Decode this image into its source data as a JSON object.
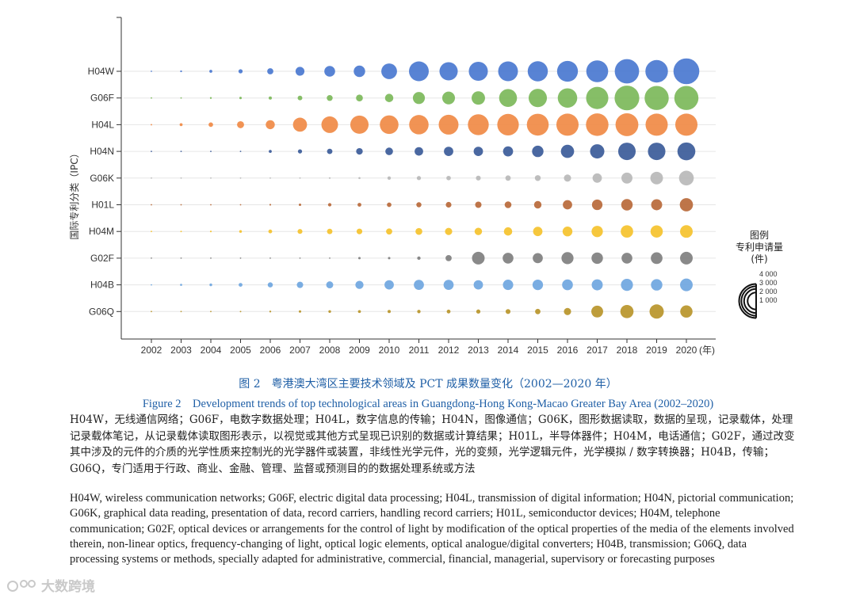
{
  "chart_data": {
    "type": "bubble",
    "title": "图 2　粤港澳大湾区主要技术领域及 PCT 成果数量变化（2002—2020 年）",
    "ylabel": "国际专利分类（IPC）",
    "x_unit_label": "(年)",
    "years": [
      "2002",
      "2003",
      "2004",
      "2005",
      "2006",
      "2007",
      "2008",
      "2009",
      "2010",
      "2011",
      "2012",
      "2013",
      "2014",
      "2015",
      "2016",
      "2017",
      "2018",
      "2019",
      "2020"
    ],
    "legend": {
      "title": "图例",
      "subtitle": "专利申请量",
      "unit": "(件)",
      "values": [
        4000,
        3000,
        2000,
        1000
      ],
      "labels": [
        "4 000",
        "3 000",
        "2 000",
        "1 000"
      ]
    },
    "series": [
      {
        "name": "H04W",
        "color": "#4a78d0",
        "values": [
          2,
          12,
          30,
          60,
          130,
          270,
          400,
          450,
          850,
          1350,
          1150,
          1250,
          1350,
          1400,
          1500,
          1650,
          2050,
          1750,
          2300
        ]
      },
      {
        "name": "G06F",
        "color": "#7cb85a",
        "values": [
          2,
          5,
          12,
          20,
          35,
          75,
          120,
          160,
          240,
          500,
          560,
          620,
          1100,
          1150,
          1300,
          1700,
          2100,
          2000,
          2000
        ]
      },
      {
        "name": "H04L",
        "color": "#f08a45",
        "values": [
          8,
          30,
          70,
          170,
          280,
          680,
          950,
          1150,
          1200,
          1300,
          1350,
          1500,
          1600,
          1650,
          1700,
          1750,
          1800,
          1700,
          1700
        ]
      },
      {
        "name": "H04N",
        "color": "#3b5b99",
        "values": [
          2,
          4,
          4,
          6,
          30,
          60,
          100,
          150,
          200,
          250,
          300,
          300,
          350,
          450,
          600,
          700,
          1050,
          1050,
          1100
        ]
      },
      {
        "name": "G06K",
        "color": "#b8b8b8",
        "values": [
          0,
          1,
          1,
          1,
          2,
          4,
          10,
          15,
          40,
          60,
          70,
          80,
          100,
          120,
          180,
          300,
          420,
          550,
          750
        ]
      },
      {
        "name": "H01L",
        "color": "#b8693a",
        "values": [
          2,
          2,
          2,
          4,
          10,
          20,
          40,
          50,
          70,
          90,
          110,
          140,
          160,
          190,
          300,
          380,
          450,
          420,
          600
        ]
      },
      {
        "name": "H04M",
        "color": "#f5c22c",
        "values": [
          5,
          8,
          10,
          25,
          50,
          80,
          100,
          110,
          130,
          160,
          180,
          190,
          240,
          300,
          330,
          440,
          530,
          520,
          550
        ]
      },
      {
        "name": "G02F",
        "color": "#7f7f7f",
        "values": [
          0,
          0,
          0,
          0,
          1,
          3,
          4,
          20,
          20,
          40,
          130,
          550,
          400,
          350,
          500,
          450,
          400,
          470,
          550
        ]
      },
      {
        "name": "H04B",
        "color": "#6fa6df",
        "values": [
          4,
          15,
          25,
          50,
          90,
          140,
          170,
          230,
          300,
          350,
          350,
          300,
          370,
          380,
          400,
          420,
          500,
          450,
          550
        ]
      },
      {
        "name": "G06Q",
        "color": "#b8952a",
        "values": [
          1,
          4,
          4,
          8,
          12,
          20,
          25,
          30,
          35,
          40,
          50,
          60,
          80,
          100,
          180,
          480,
          600,
          700,
          520
        ]
      }
    ]
  },
  "caption_cn": "图 2　粤港澳大湾区主要技术领域及 PCT 成果数量变化（2002—2020 年）",
  "caption_en": "Figure 2　Development trends of top technological areas in Guangdong-Hong Kong-Macao Greater Bay Area (2002–2020)",
  "note_cn": "H04W，无线通信网络；G06F，电数字数据处理；H04L，数字信息的传输；H04N，图像通信；G06K，图形数据读取，数据的呈现，记录载体，处理记录载体笔记，从记录载体读取图形表示，以视觉或其他方式呈现已识别的数据或计算结果；H01L，半导体器件；H04M，电话通信；G02F，通过改变其中涉及的元件的介质的光学性质来控制光的光学器件或装置，非线性光学元件，光的变频，光学逻辑元件，光学模拟 / 数字转换器；H04B，传输；G06Q，专门适用于行政、商业、金融、管理、监督或预测目的的数据处理系统或方法",
  "note_en": "H04W, wireless communication networks; G06F, electric digital data processing; H04L, transmission of digital information; H04N, pictorial communication; G06K, graphical data reading, presentation of data, record carriers, handling record carriers; H01L, semiconductor devices; H04M, telephone communication; G02F, optical devices or arrangements for the control of light by modification of the optical properties of the media of the elements involved therein, non-linear optics, frequency-changing of light, optical logic elements, optical analogue/digital converters; H04B, transmission; G06Q, data processing systems or methods, specially adapted for administrative, commercial, financial, managerial, supervisory or forecasting purposes",
  "watermark": "大数跨境"
}
